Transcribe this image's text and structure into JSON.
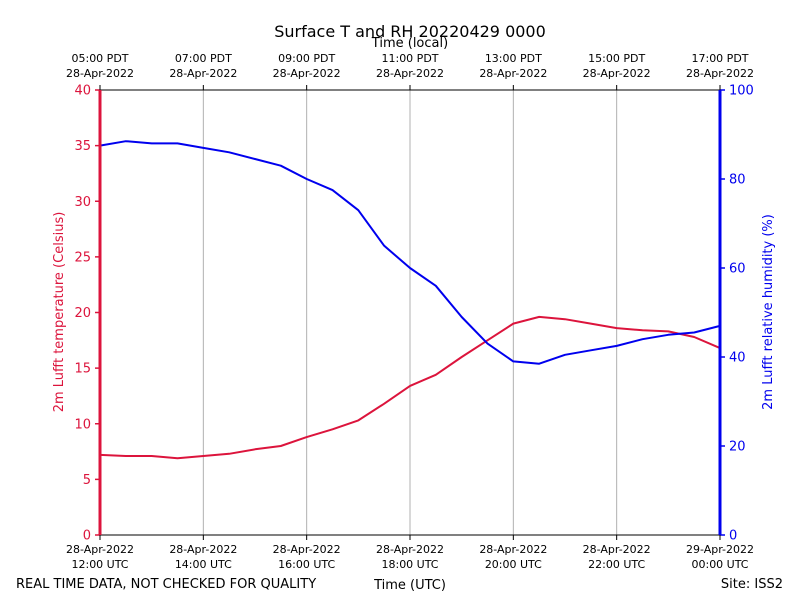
{
  "chart_data": {
    "type": "line",
    "title": "Surface T and RH 20220429 0000",
    "top_axis_label": "Time (local)",
    "xlabel": "Time (UTC)",
    "ylabel_left": "2m Lufft temperature (Celsius)",
    "ylabel_right": "2m Lufft relative humidity (%)",
    "ylim_left": [
      0,
      40
    ],
    "ylim_right": [
      0,
      100
    ],
    "xlim_hours_utc": [
      12,
      24
    ],
    "left_ticks": [
      "0",
      "5",
      "10",
      "15",
      "20",
      "25",
      "30",
      "35",
      "40"
    ],
    "right_ticks": [
      "0",
      "20",
      "40",
      "60",
      "80",
      "100"
    ],
    "bottom_ticks": [
      {
        "h": 12,
        "date": "28-Apr-2022",
        "time": "12:00 UTC"
      },
      {
        "h": 14,
        "date": "28-Apr-2022",
        "time": "14:00 UTC"
      },
      {
        "h": 16,
        "date": "28-Apr-2022",
        "time": "16:00 UTC"
      },
      {
        "h": 18,
        "date": "28-Apr-2022",
        "time": "18:00 UTC"
      },
      {
        "h": 20,
        "date": "28-Apr-2022",
        "time": "20:00 UTC"
      },
      {
        "h": 22,
        "date": "28-Apr-2022",
        "time": "22:00 UTC"
      },
      {
        "h": 24,
        "date": "29-Apr-2022",
        "time": "00:00 UTC"
      }
    ],
    "top_ticks": [
      {
        "h": 12,
        "time": "05:00 PDT",
        "date": "28-Apr-2022"
      },
      {
        "h": 14,
        "time": "07:00 PDT",
        "date": "28-Apr-2022"
      },
      {
        "h": 16,
        "time": "09:00 PDT",
        "date": "28-Apr-2022"
      },
      {
        "h": 18,
        "time": "11:00 PDT",
        "date": "28-Apr-2022"
      },
      {
        "h": 20,
        "time": "13:00 PDT",
        "date": "28-Apr-2022"
      },
      {
        "h": 22,
        "time": "15:00 PDT",
        "date": "28-Apr-2022"
      },
      {
        "h": 24,
        "time": "17:00 PDT",
        "date": "28-Apr-2022"
      }
    ],
    "series": [
      {
        "name": "2m Lufft temperature (Celsius)",
        "axis": "left",
        "color": "#dc143c",
        "x_hours": [
          12.0,
          12.5,
          13.0,
          13.5,
          14.0,
          14.5,
          15.0,
          15.5,
          16.0,
          16.5,
          17.0,
          17.5,
          18.0,
          18.5,
          19.0,
          19.5,
          20.0,
          20.5,
          21.0,
          21.5,
          22.0,
          22.5,
          23.0,
          23.5,
          24.0
        ],
        "values": [
          7.2,
          7.1,
          7.1,
          6.9,
          7.1,
          7.3,
          7.7,
          8.0,
          8.8,
          9.5,
          10.3,
          11.8,
          13.4,
          14.4,
          16.0,
          17.5,
          19.0,
          19.6,
          19.4,
          19.0,
          18.6,
          18.4,
          18.3,
          17.8,
          16.8
        ]
      },
      {
        "name": "2m Lufft relative humidity (%)",
        "axis": "right",
        "color": "#0000ee",
        "x_hours": [
          12.0,
          12.5,
          13.0,
          13.5,
          14.0,
          14.5,
          15.0,
          15.5,
          16.0,
          16.5,
          17.0,
          17.5,
          18.0,
          18.5,
          19.0,
          19.5,
          20.0,
          20.5,
          21.0,
          21.5,
          22.0,
          22.5,
          23.0,
          23.5,
          24.0
        ],
        "values": [
          87.5,
          88.5,
          88.0,
          88.0,
          87.0,
          86.0,
          84.5,
          83.0,
          80.0,
          77.5,
          73.0,
          65.0,
          60.0,
          56.0,
          49.0,
          43.0,
          39.0,
          38.5,
          40.5,
          41.5,
          42.5,
          44.0,
          45.0,
          45.5,
          47.0
        ]
      }
    ]
  },
  "footer": {
    "note": "REAL TIME DATA, NOT CHECKED FOR QUALITY",
    "site": "Site: ISS2"
  }
}
